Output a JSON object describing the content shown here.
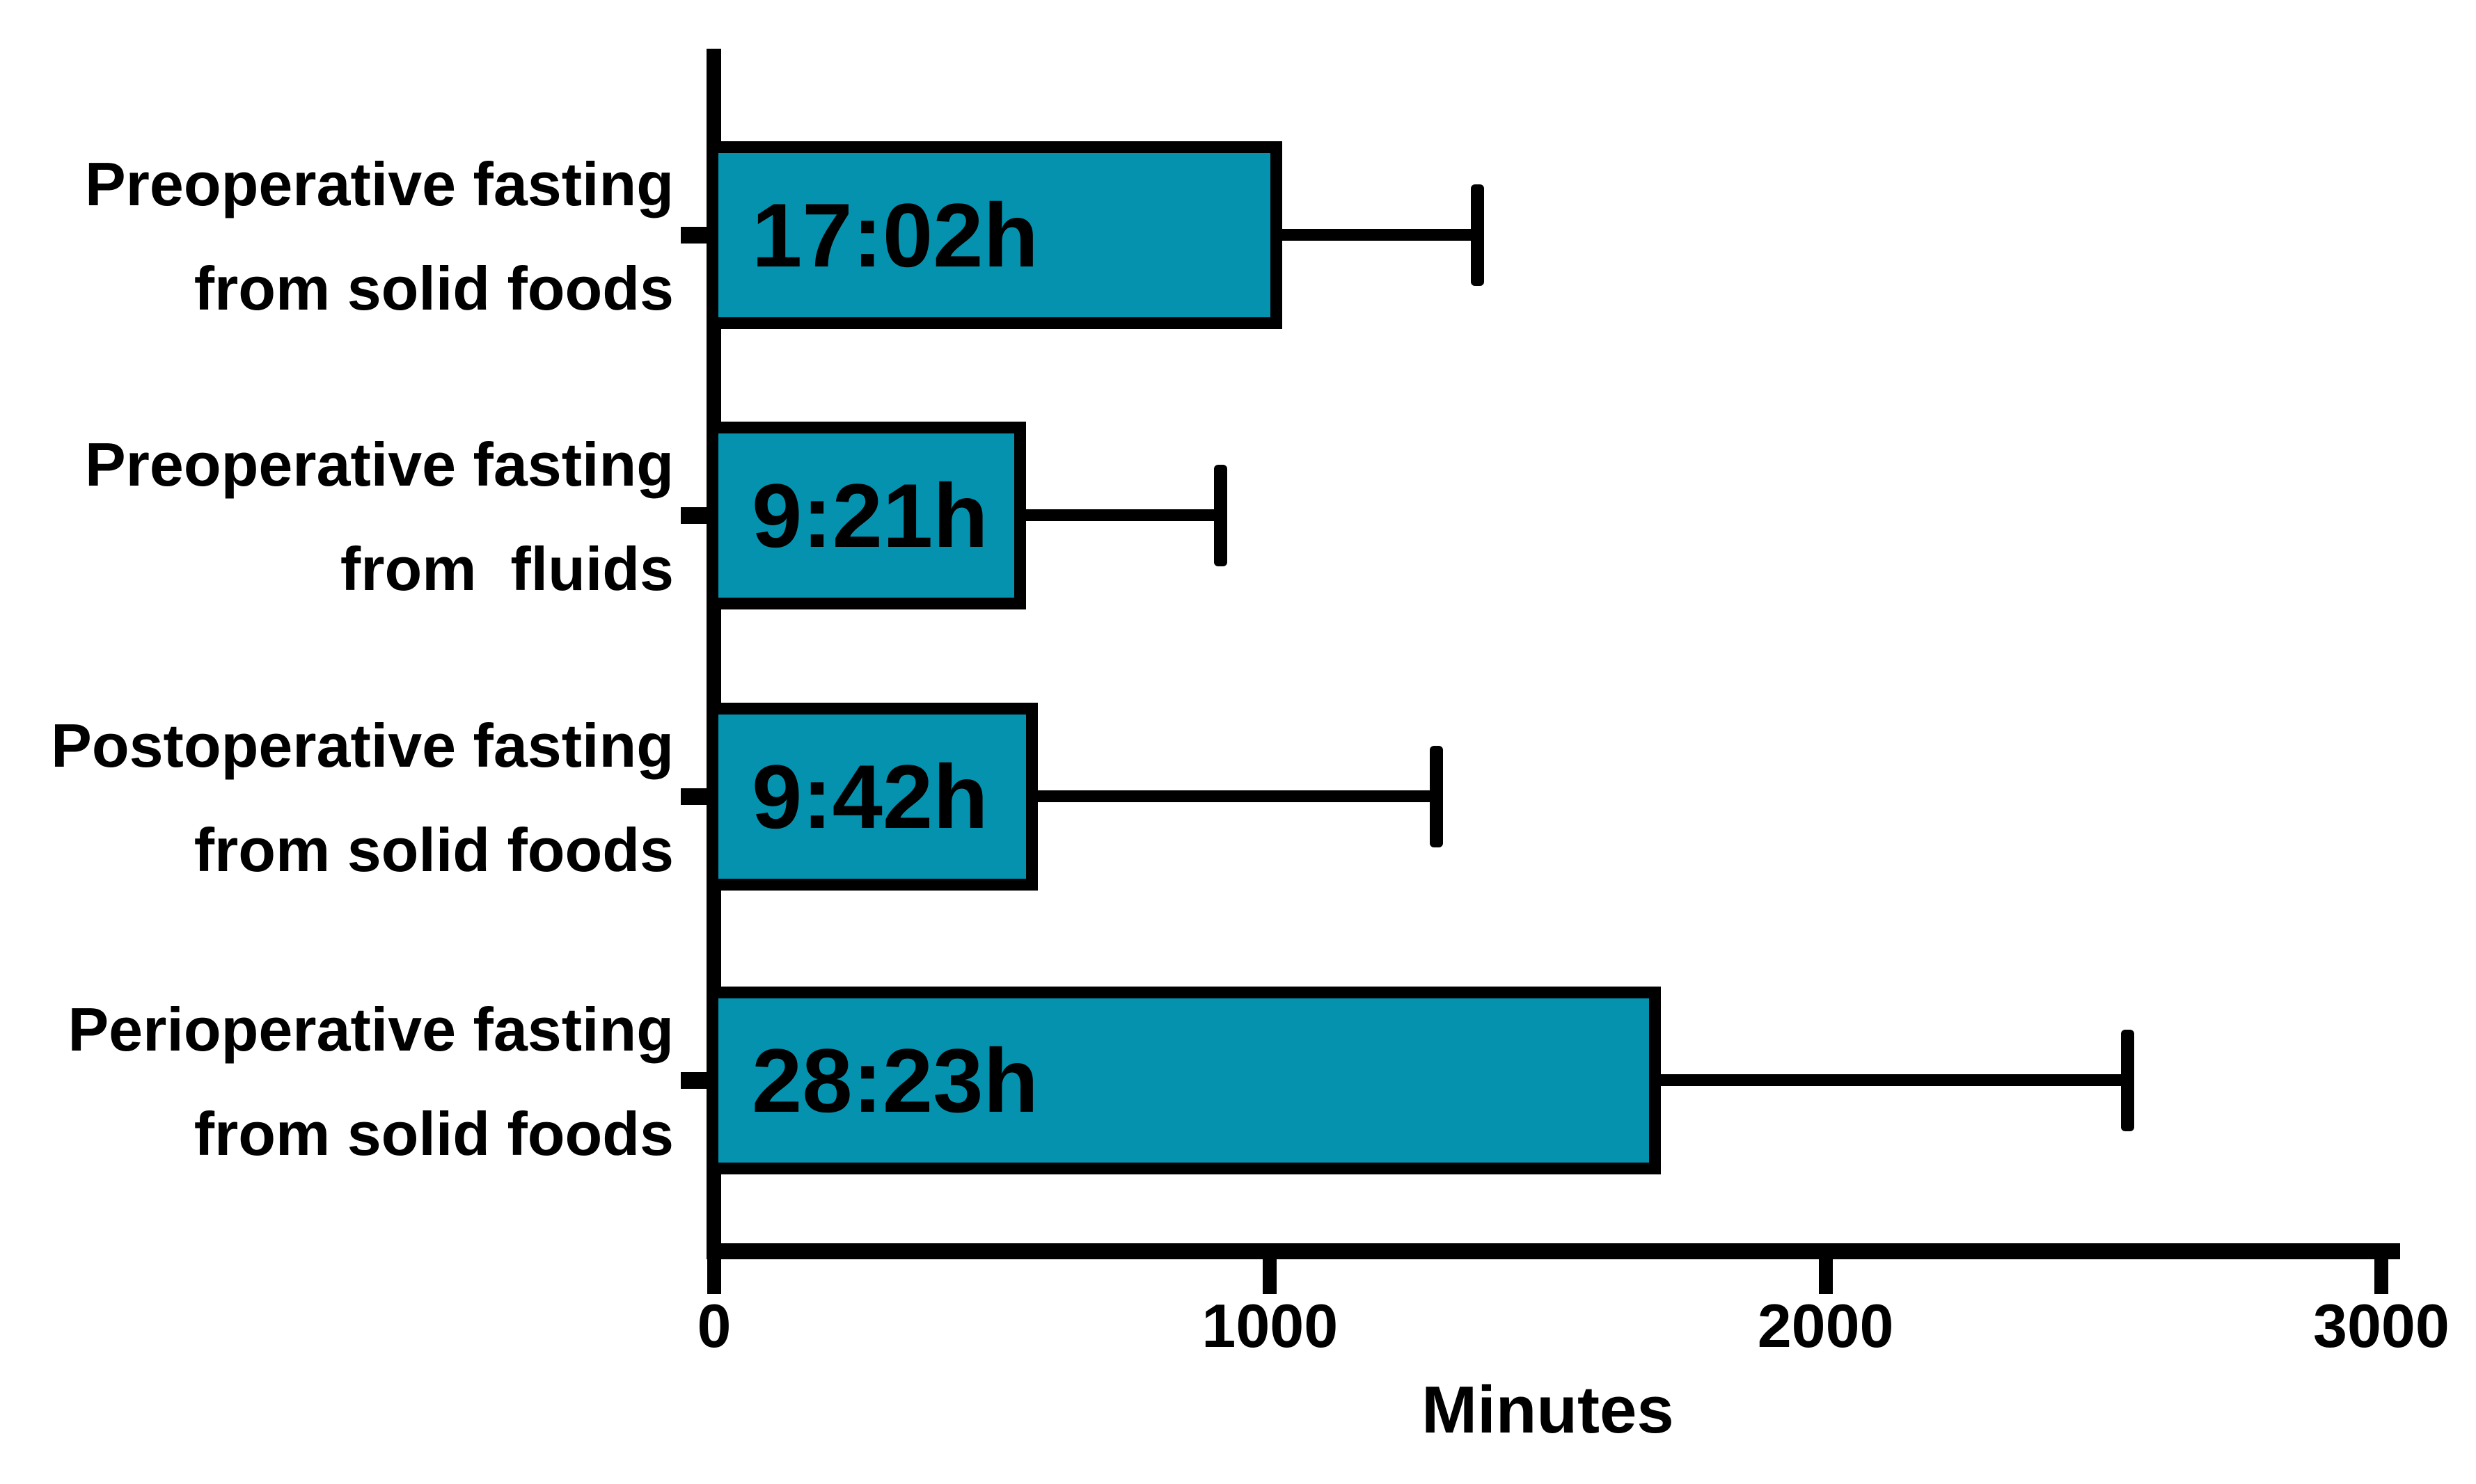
{
  "chart_data": {
    "type": "bar",
    "orientation": "horizontal",
    "title": "",
    "xlabel": "Minutes",
    "ylabel": "",
    "xlim": [
      0,
      3000
    ],
    "x_tick_values": [
      0,
      1000,
      2000,
      3000
    ],
    "x_tick_labels": [
      "0",
      "1000",
      "2000",
      "3000"
    ],
    "grid": false,
    "legend": false,
    "background_color": "#FFFFFF",
    "bar_color": "#0492AF",
    "bar_border_color": "#000000",
    "error_bar_color": "#000000",
    "rows": [
      {
        "label_line1": "Preoperative fasting",
        "label_line2": "from solid foods",
        "bar_label": "17:02h",
        "value_minutes": 1022,
        "error_upper_minutes": 1373
      },
      {
        "label_line1": "Preoperative fasting",
        "label_line2": "from  fluids",
        "bar_label": "9:21h",
        "value_minutes": 561,
        "error_upper_minutes": 911
      },
      {
        "label_line1": "Postoperative fasting",
        "label_line2": "from solid foods",
        "bar_label": "9:42h",
        "value_minutes": 582,
        "error_upper_minutes": 1299
      },
      {
        "label_line1": "Perioperative fasting",
        "label_line2": "from solid foods",
        "bar_label": "28:23h",
        "value_minutes": 1703,
        "error_upper_minutes": 2543
      }
    ]
  }
}
